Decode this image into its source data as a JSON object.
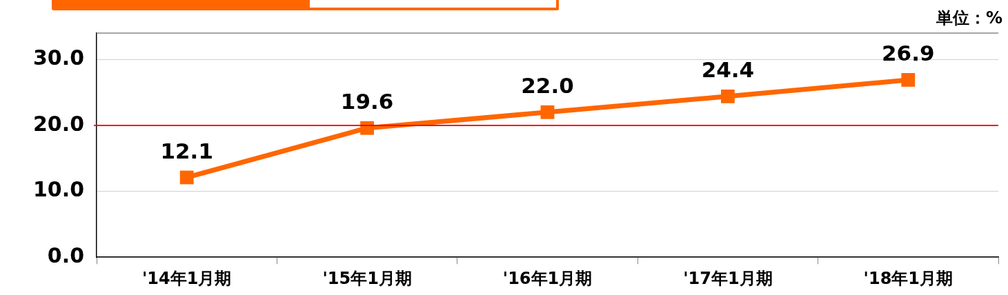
{
  "chart_data": {
    "type": "line",
    "categories": [
      "'14年1月期",
      "'15年1月期",
      "'16年1月期",
      "'17年1月期",
      "'18年1月期"
    ],
    "series": [
      {
        "color": "#ff6600",
        "values": [
          12.1,
          19.6,
          22.0,
          24.4,
          26.9
        ]
      }
    ],
    "ylim": [
      0,
      34
    ],
    "yticks": [
      {
        "value": 0,
        "label": "0.0"
      },
      {
        "value": 10,
        "label": "10.0"
      },
      {
        "value": 20,
        "label": "20.0"
      },
      {
        "value": 30,
        "label": "30.0"
      }
    ],
    "grid": "y",
    "marker": "square",
    "line_style": "solid",
    "legend": false,
    "value_labels": [
      "12.1",
      "19.6",
      "22.0",
      "24.4",
      "26.9"
    ],
    "ref_lines": [
      {
        "axis": "y",
        "value": 20,
        "color": "#ff0000"
      }
    ],
    "annotations": [
      "単位：%"
    ]
  }
}
